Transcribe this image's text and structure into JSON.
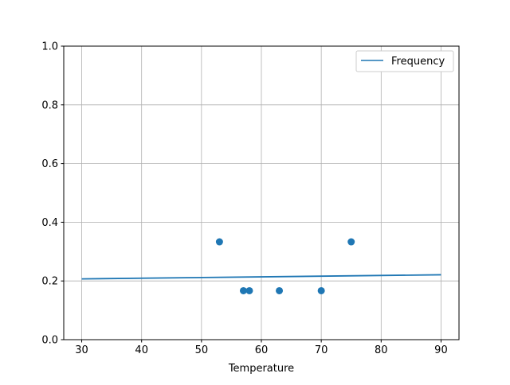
{
  "chart_data": {
    "type": "scatter",
    "title": "",
    "xlabel": "Temperature",
    "ylabel": "",
    "xlim": [
      27,
      93
    ],
    "ylim": [
      0,
      1
    ],
    "xticks": [
      30,
      40,
      50,
      60,
      70,
      80,
      90
    ],
    "yticks": [
      0.0,
      0.2,
      0.4,
      0.6,
      0.8,
      1.0
    ],
    "xtick_labels": [
      "30",
      "40",
      "50",
      "60",
      "70",
      "80",
      "90"
    ],
    "ytick_labels": [
      "0.0",
      "0.2",
      "0.4",
      "0.6",
      "0.8",
      "1.0"
    ],
    "grid": true,
    "legend_placement": "top-right",
    "color": "#1f77b4",
    "scatter_points": {
      "x": [
        53,
        57,
        58,
        63,
        70,
        75
      ],
      "y": [
        0.3333,
        0.1667,
        0.1667,
        0.1667,
        0.1667,
        0.3333
      ]
    },
    "line_series": {
      "name": "Frequency",
      "x": [
        30,
        90
      ],
      "y": [
        0.207,
        0.221
      ]
    }
  }
}
